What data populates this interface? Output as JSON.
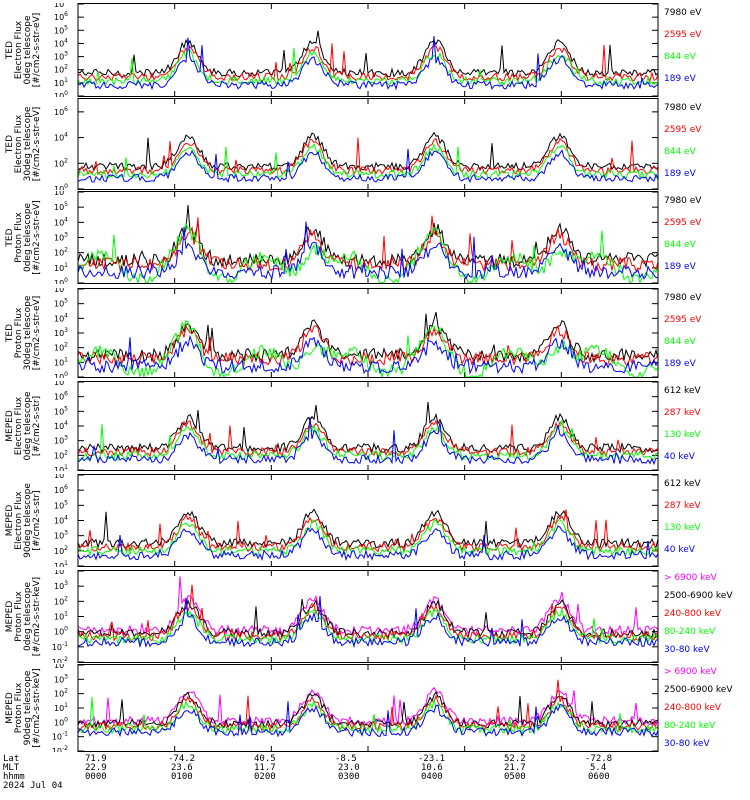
{
  "colors": {
    "black": "#000000",
    "red": "#ff0000",
    "green": "#00ff00",
    "blue": "#0000ff",
    "magenta": "#ff00ff"
  },
  "chart_data": [
    {
      "type": "line",
      "ylabel_lines": [
        "TED",
        "Electron Flux",
        "0deg telescope",
        "[#/cm2-s-str-eV]"
      ],
      "y_scale": "log",
      "ylim_exp": [
        0,
        7
      ],
      "ytick_exps": [
        0,
        1,
        2,
        3,
        4,
        5,
        6,
        7
      ],
      "series": [
        {
          "name": "7980 eV",
          "color": "#000000"
        },
        {
          "name": "2595 eV",
          "color": "#ff0000"
        },
        {
          "name": "844 eV",
          "color": "#00ff00"
        },
        {
          "name": "189 eV",
          "color": "#0000ff"
        }
      ]
    },
    {
      "type": "line",
      "ylabel_lines": [
        "TED",
        "Electron Flux",
        "30deg telescope",
        "[#/cm2-s-str-eV]"
      ],
      "y_scale": "log",
      "ylim_exp": [
        0,
        7
      ],
      "ytick_exps": [
        0,
        2,
        4,
        6
      ],
      "series": [
        {
          "name": "7980 eV",
          "color": "#000000"
        },
        {
          "name": "2595 eV",
          "color": "#ff0000"
        },
        {
          "name": "844 eV",
          "color": "#00ff00"
        },
        {
          "name": "189 eV",
          "color": "#0000ff"
        }
      ]
    },
    {
      "type": "line",
      "ylabel_lines": [
        "TED",
        "Proton Flux",
        "0deg telescope",
        "[#/cm2-s-str-eV]"
      ],
      "y_scale": "log",
      "ylim_exp": [
        0,
        6
      ],
      "ytick_exps": [
        0,
        1,
        2,
        3,
        4,
        5,
        6
      ],
      "series": [
        {
          "name": "7980 eV",
          "color": "#000000"
        },
        {
          "name": "2595 eV",
          "color": "#ff0000"
        },
        {
          "name": "844 eV",
          "color": "#00ff00"
        },
        {
          "name": "189 eV",
          "color": "#0000ff"
        }
      ]
    },
    {
      "type": "line",
      "ylabel_lines": [
        "TED",
        "Proton Flux",
        "30deg telescope",
        "[#/cm2-s-str-eV]"
      ],
      "y_scale": "log",
      "ylim_exp": [
        0,
        6
      ],
      "ytick_exps": [
        0,
        1,
        2,
        3,
        4,
        5,
        6
      ],
      "series": [
        {
          "name": "7980 eV",
          "color": "#000000"
        },
        {
          "name": "2595 eV",
          "color": "#ff0000"
        },
        {
          "name": "844 eV",
          "color": "#00ff00"
        },
        {
          "name": "189 eV",
          "color": "#0000ff"
        }
      ]
    },
    {
      "type": "line",
      "ylabel_lines": [
        "MEPED",
        "Electron Flux",
        "0deg telescope",
        "[#/cm2-s-str]"
      ],
      "y_scale": "log",
      "ylim_exp": [
        1,
        7
      ],
      "ytick_exps": [
        1,
        2,
        3,
        4,
        5,
        6,
        7
      ],
      "series": [
        {
          "name": "612 keV",
          "color": "#000000"
        },
        {
          "name": "287 keV",
          "color": "#ff0000"
        },
        {
          "name": "130 keV",
          "color": "#00ff00"
        },
        {
          "name": "40 keV",
          "color": "#0000ff"
        }
      ]
    },
    {
      "type": "line",
      "ylabel_lines": [
        "MEPED",
        "Electron Flux",
        "90deg telescope",
        "[#/cm2-s-str]"
      ],
      "y_scale": "log",
      "ylim_exp": [
        1,
        7
      ],
      "ytick_exps": [
        1,
        2,
        3,
        4,
        5,
        6,
        7
      ],
      "series": [
        {
          "name": "612 keV",
          "color": "#000000"
        },
        {
          "name": "287 keV",
          "color": "#ff0000"
        },
        {
          "name": "130 keV",
          "color": "#00ff00"
        },
        {
          "name": "40 keV",
          "color": "#0000ff"
        }
      ]
    },
    {
      "type": "line",
      "ylabel_lines": [
        "MEPED",
        "Proton Flux",
        "0deg telescope",
        "[#/cm2-s-str-keV]"
      ],
      "y_scale": "log",
      "ylim_exp": [
        -2,
        4
      ],
      "ytick_exps": [
        -2,
        -1,
        0,
        1,
        2,
        3,
        4
      ],
      "series": [
        {
          "name": "> 6900 keV",
          "color": "#ff00ff"
        },
        {
          "name": "2500-6900 keV",
          "color": "#000000"
        },
        {
          "name": "240-800 keV",
          "color": "#ff0000"
        },
        {
          "name": "80-240 keV",
          "color": "#00ff00"
        },
        {
          "name": "30-80 keV",
          "color": "#0000ff"
        }
      ]
    },
    {
      "type": "line",
      "ylabel_lines": [
        "MEPED",
        "Proton Flux",
        "90deg telescope",
        "[#/cm2-s-str-keV]"
      ],
      "y_scale": "log",
      "ylim_exp": [
        -2,
        4
      ],
      "ytick_exps": [
        -2,
        -1,
        0,
        1,
        2,
        3,
        4
      ],
      "series": [
        {
          "name": "> 6900 keV",
          "color": "#ff00ff"
        },
        {
          "name": "2500-6900 keV",
          "color": "#000000"
        },
        {
          "name": "240-800 keV",
          "color": "#ff0000"
        },
        {
          "name": "80-240 keV",
          "color": "#00ff00"
        },
        {
          "name": "30-80 keV",
          "color": "#0000ff"
        }
      ]
    }
  ],
  "footer": {
    "row_labels": [
      "Lat",
      "MLT",
      "hhmm",
      "2024 Jul 04"
    ],
    "lat": [
      "71.9",
      "-74.2",
      "40.5",
      "-8.5",
      "-23.1",
      "52.2",
      "-72.8"
    ],
    "mlt": [
      "22.9",
      "23.6",
      "11.7",
      "23.0",
      "10.6",
      "21.7",
      "5.4"
    ],
    "hhmm": [
      "0000",
      "0100",
      "0200",
      "0300",
      "0400",
      "0500",
      "0600"
    ]
  }
}
